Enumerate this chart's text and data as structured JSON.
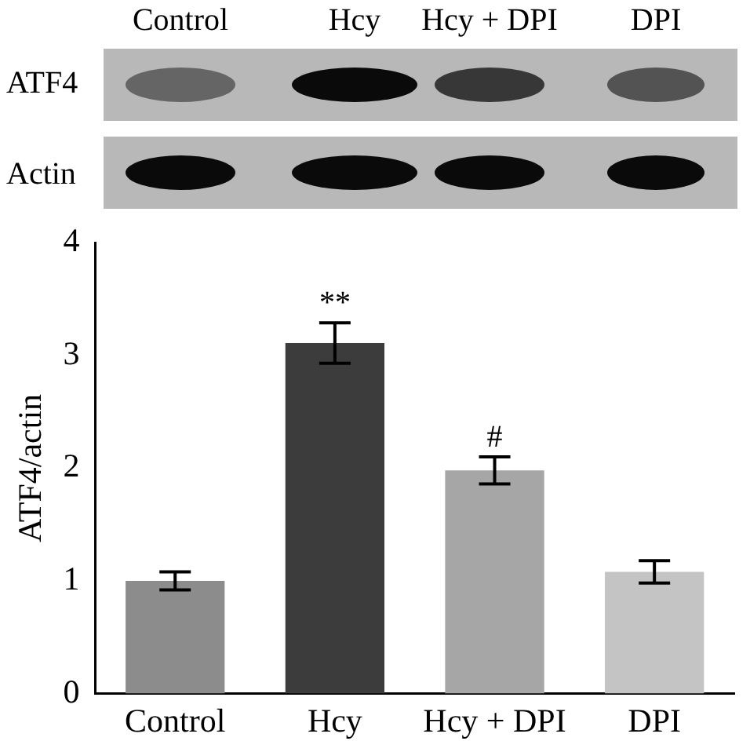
{
  "chart_data": {
    "type": "bar",
    "ylabel": "ATF4/actin",
    "categories": [
      "Control",
      "Hcy",
      "Hcy + DPI",
      "DPI"
    ],
    "values": [
      1.0,
      3.11,
      1.98,
      1.08
    ],
    "colors": [
      "#8c8c8c",
      "#3c3c3c",
      "#a6a6a6",
      "#c4c4c4"
    ],
    "errors": [
      0.08,
      0.18,
      0.12,
      0.1
    ],
    "ylim": [
      0,
      4
    ],
    "yticks": [
      0,
      1,
      2,
      3,
      4
    ],
    "grid": false,
    "legend": false,
    "annotations": [
      "ATF4",
      "Actin",
      {
        "text": "**",
        "x": "Hcy",
        "y": 3.29
      },
      {
        "text": "#",
        "x": "Hcy + DPI",
        "y": 2.1
      }
    ]
  }
}
